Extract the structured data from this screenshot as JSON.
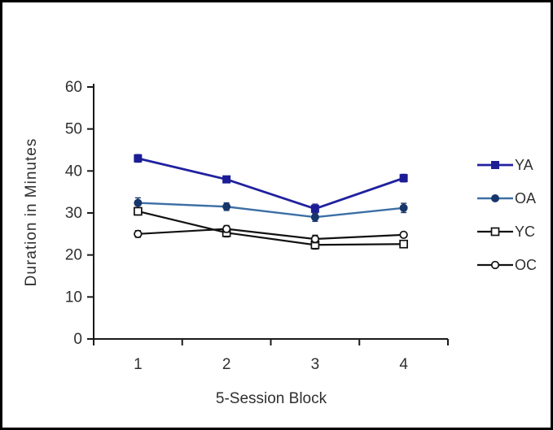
{
  "chart_data": {
    "type": "line",
    "title": "",
    "xlabel": "5-Session Block",
    "ylabel": "Duration in Minutes",
    "categories": [
      "1",
      "2",
      "3",
      "4"
    ],
    "ylim": [
      0,
      60
    ],
    "yticks": [
      0,
      10,
      20,
      30,
      40,
      50,
      60
    ],
    "grid": false,
    "legend_position": "right",
    "error_bars": true,
    "series": [
      {
        "name": "YA",
        "values": [
          43,
          38,
          31,
          38.3
        ],
        "errors": [
          0.9,
          0.7,
          1.1,
          0.9
        ],
        "marker": "square-filled",
        "line_color": "#20219f",
        "marker_color": "#1c1d96"
      },
      {
        "name": "OA",
        "values": [
          32.4,
          31.5,
          29,
          31.2
        ],
        "errors": [
          1.2,
          0.9,
          1.0,
          1.1
        ],
        "marker": "circle-filled",
        "line_color": "#3c6fa5",
        "marker_color": "#17366b"
      },
      {
        "name": "YC",
        "values": [
          30.4,
          25.3,
          22.4,
          22.6
        ],
        "errors": [
          0.9,
          1.0,
          1.0,
          0.8
        ],
        "marker": "square-open",
        "line_color": "#111111",
        "marker_color": "#111111"
      },
      {
        "name": "OC",
        "values": [
          25,
          26.2,
          23.8,
          24.8
        ],
        "errors": [
          0.8,
          0.8,
          0.9,
          0.6
        ],
        "marker": "circle-open",
        "line_color": "#111111",
        "marker_color": "#111111"
      }
    ],
    "axis_color": "#1a1a1a",
    "text_color": "#2f2f2f"
  }
}
